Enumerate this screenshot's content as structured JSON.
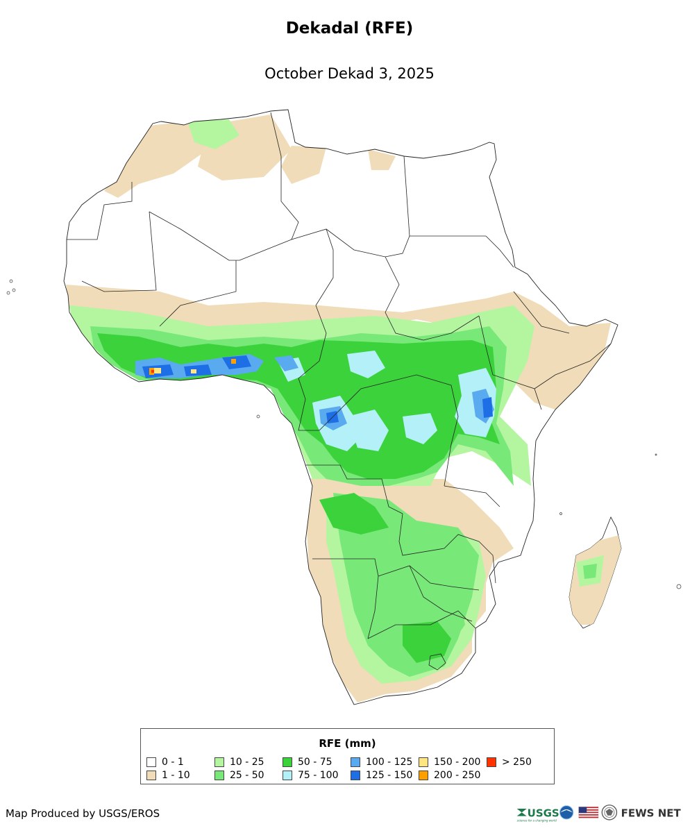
{
  "title": "Dekadal (RFE)",
  "subtitle": "October Dekad 3, 2025",
  "legend": {
    "title": "RFE (mm)",
    "items": [
      {
        "label": "0 - 1",
        "color": "#ffffff"
      },
      {
        "label": "1 - 10",
        "color": "#f0dcb8"
      },
      {
        "label": "10 - 25",
        "color": "#b4f5a0"
      },
      {
        "label": "25 - 50",
        "color": "#78e878"
      },
      {
        "label": "50 - 75",
        "color": "#3cd23c"
      },
      {
        "label": "75 - 100",
        "color": "#b4f0f8"
      },
      {
        "label": "100 - 125",
        "color": "#5aaaf0"
      },
      {
        "label": "125 - 150",
        "color": "#1e6ee6"
      },
      {
        "label": "150 - 200",
        "color": "#ffe682"
      },
      {
        "label": "200 - 250",
        "color": "#ffa000"
      },
      {
        "label": "> 250",
        "color": "#ff3200"
      }
    ]
  },
  "credit": "Map Produced by USGS/EROS",
  "logos": {
    "usgs": "USGS",
    "usgs_tagline": "science for a changing world",
    "fews": "FEWS NET"
  },
  "colors": {
    "dry": "#f0dcb8",
    "light": "#b4f5a0",
    "mid": "#78e878",
    "wet": "#3cd23c",
    "cyan": "#b4f0f8",
    "blue": "#5aaaf0",
    "deep_blue": "#1e6ee6",
    "yellow": "#ffe682",
    "orange": "#ffa000",
    "red": "#ff3200"
  }
}
